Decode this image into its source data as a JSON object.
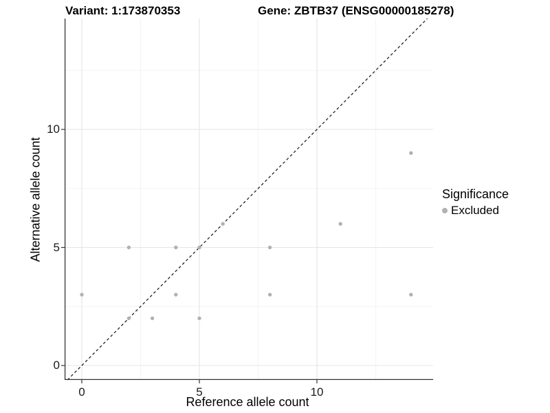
{
  "title": {
    "variant": "Variant: 1:173870353",
    "gene": "Gene: ZBTB37 (ENSG00000185278)"
  },
  "axes": {
    "x": {
      "label": "Reference allele count",
      "major_ticks": [
        0,
        5,
        10
      ],
      "minor_ticks": [
        2.5,
        7.5,
        12.5
      ]
    },
    "y": {
      "label": "Alternative allele count",
      "major_ticks": [
        0,
        5,
        10
      ],
      "minor_ticks": [
        2.5,
        7.5,
        12.5
      ]
    }
  },
  "legend": {
    "title": "Significance",
    "items": [
      {
        "label": "Excluded",
        "color": "#b1b1b1"
      }
    ]
  },
  "colors": {
    "point": "#b1b1b1",
    "grid_major": "#e4e4e4",
    "grid_minor": "#f0f0f0",
    "axis_line": "#333333",
    "identity_line": "#111111",
    "background": "#ffffff"
  },
  "chart_data": {
    "type": "scatter",
    "title": "Variant: 1:173870353   Gene: ZBTB37 (ENSG00000185278)",
    "xlabel": "Reference allele count",
    "ylabel": "Alternative allele count",
    "xlim": [
      -0.7,
      14.7
    ],
    "ylim": [
      -0.7,
      14.7
    ],
    "x_ticks": [
      0,
      5,
      10
    ],
    "y_ticks": [
      0,
      5,
      10
    ],
    "grid": true,
    "reference_line": {
      "style": "dashed",
      "equation": "y = x"
    },
    "legend_position": "right",
    "series": [
      {
        "name": "Excluded",
        "color": "#b1b1b1",
        "points": [
          [
            0,
            3
          ],
          [
            2,
            2
          ],
          [
            2,
            5
          ],
          [
            3,
            2
          ],
          [
            4,
            3
          ],
          [
            4,
            5
          ],
          [
            5,
            2
          ],
          [
            5,
            5
          ],
          [
            6,
            6
          ],
          [
            8,
            3
          ],
          [
            8,
            5
          ],
          [
            11,
            6
          ],
          [
            14,
            3
          ],
          [
            14,
            9
          ]
        ]
      }
    ]
  }
}
